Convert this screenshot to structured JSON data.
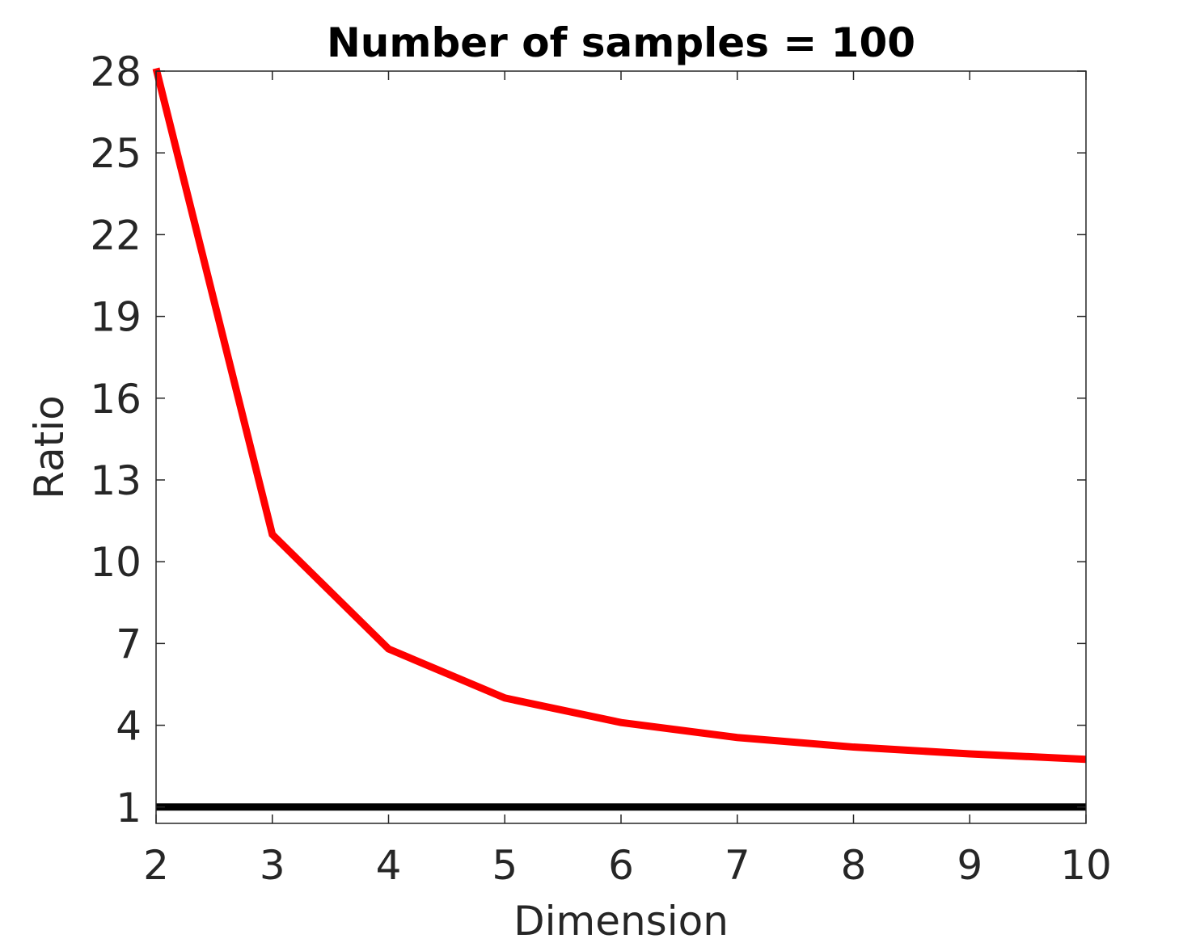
{
  "chart_data": {
    "type": "line",
    "title": "Number of samples = 100",
    "xlabel": "Dimension",
    "ylabel": "Ratio",
    "xlim": [
      2,
      10
    ],
    "ylim": [
      0.4,
      28
    ],
    "xticks": [
      "2",
      "3",
      "4",
      "5",
      "6",
      "7",
      "8",
      "9",
      "10"
    ],
    "yticks": [
      "1",
      "4",
      "7",
      "10",
      "13",
      "16",
      "19",
      "22",
      "25",
      "28"
    ],
    "grid": false,
    "x": [
      2,
      3,
      4,
      5,
      6,
      7,
      8,
      9,
      10
    ],
    "series": [
      {
        "color": "#ff0000",
        "values": [
          28.1,
          11.0,
          6.8,
          5.0,
          4.1,
          3.55,
          3.2,
          2.95,
          2.75
        ]
      },
      {
        "color": "#000000",
        "values": [
          1.0,
          1.0,
          1.0,
          1.0,
          1.0,
          1.0,
          1.0,
          1.0,
          1.0
        ]
      }
    ]
  }
}
